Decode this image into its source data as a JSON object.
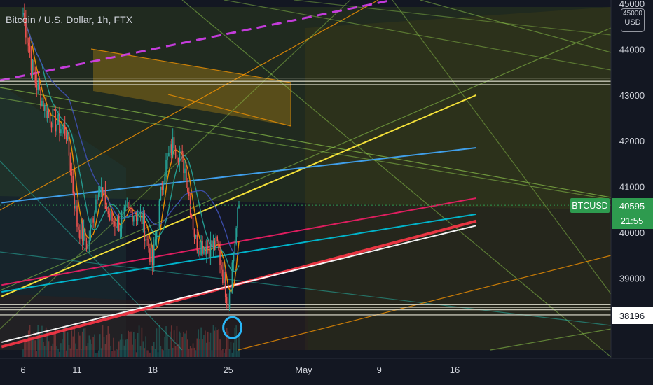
{
  "header": {
    "title": "Bitcoin / U.S. Dollar, 1h, FTX",
    "currency_line1": "45000",
    "currency_line2": "USD"
  },
  "colors": {
    "background": "#131722",
    "up": "#26a69a",
    "down": "#ef5350",
    "price_label": "#2e9b4f",
    "text": "#d1d4dc"
  },
  "price_tag": {
    "symbol": "BTCUSD",
    "price": "40595",
    "countdown": "21:55",
    "marked_price": "38196"
  },
  "chart_data": {
    "type": "line",
    "title": "Bitcoin / U.S. Dollar, 1h, FTX",
    "xlabel": "",
    "ylabel": "",
    "x_ticks": [
      "6",
      "11",
      "18",
      "25",
      "May",
      "9",
      "16"
    ],
    "y_ticks": [
      39000,
      40000,
      41000,
      42000,
      43000,
      44000,
      45000
    ],
    "ylim": [
      37600,
      45080
    ],
    "grid": false,
    "series": [
      {
        "kind": "price",
        "x": [
          "Apr 6",
          "Apr 7",
          "Apr 8",
          "Apr 9",
          "Apr 10",
          "Apr 11",
          "Apr 12",
          "Apr 13",
          "Apr 14",
          "Apr 15",
          "Apr 16",
          "Apr 17",
          "Apr 18",
          "Apr 19",
          "Apr 20",
          "Apr 21",
          "Apr 22",
          "Apr 23",
          "Apr 24",
          "Apr 25",
          "Apr 26"
        ],
        "values": [
          44800,
          43400,
          42700,
          42400,
          42200,
          40200,
          39700,
          41100,
          40300,
          40200,
          40500,
          40300,
          39300,
          41300,
          42000,
          41400,
          39800,
          39700,
          39700,
          38500,
          40595
        ]
      }
    ],
    "horizontal_levels": [
      43300,
      38420,
      38310,
      38196
    ],
    "trendlines": [
      {
        "color": "#ffeb3b",
        "from": [
          "Apr 4",
          38600
        ],
        "to": [
          "May 18",
          43000
        ]
      },
      {
        "color": "#f23645",
        "from": [
          "Apr 4",
          37500
        ],
        "to": [
          "May 18",
          40250
        ]
      },
      {
        "color": "#e91e63",
        "from": [
          "Apr 4",
          38850
        ],
        "to": [
          "May 18",
          40750
        ]
      },
      {
        "color": "#00bcd4",
        "from": [
          "Apr 4",
          38700
        ],
        "to": [
          "May 18",
          40400
        ]
      },
      {
        "color": "#ffffff",
        "from": [
          "Apr 4",
          37600
        ],
        "to": [
          "May 18",
          40150
        ]
      },
      {
        "color": "#42a5f5",
        "from": [
          "Apr 4",
          40650
        ],
        "to": [
          "May 18",
          41850
        ]
      }
    ],
    "annotations": [
      {
        "type": "circle",
        "at": [
          "Apr 25",
          38300
        ],
        "color": "#29b6f6"
      }
    ]
  }
}
